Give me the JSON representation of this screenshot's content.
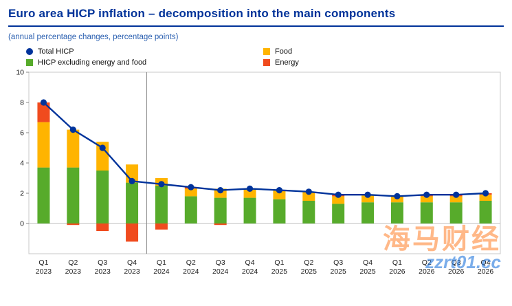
{
  "header": {
    "title": "Euro area HICP inflation – decomposition into the main components",
    "subtitle": "(annual percentage changes, percentage points)"
  },
  "legend": [
    {
      "label": "Total HICP",
      "type": "dot",
      "color": "#00339b"
    },
    {
      "label": "HICP excluding energy and food",
      "type": "square",
      "color": "#57ab2b"
    },
    {
      "label": "Food",
      "type": "square",
      "color": "#ffb400"
    },
    {
      "label": "Energy",
      "type": "square",
      "color": "#f04b1e"
    }
  ],
  "watermark": {
    "line1": "海马财经",
    "line2": "zzrt01.cc"
  },
  "chart_data": {
    "type": "bar",
    "subtype": "stacked-bars-with-total-line",
    "categories": [
      "Q1 2023",
      "Q2 2023",
      "Q3 2023",
      "Q4 2023",
      "Q1 2024",
      "Q2 2024",
      "Q3 2024",
      "Q4 2024",
      "Q1 2025",
      "Q2 2025",
      "Q3 2025",
      "Q4 2025",
      "Q1 2026",
      "Q2 2026",
      "Q3 2026",
      "Q4 2026"
    ],
    "series": [
      {
        "name": "HICP excluding energy and food",
        "color": "#57ab2b",
        "values": [
          3.7,
          3.7,
          3.5,
          2.7,
          2.5,
          1.8,
          1.7,
          1.7,
          1.6,
          1.5,
          1.3,
          1.4,
          1.4,
          1.4,
          1.4,
          1.5
        ]
      },
      {
        "name": "Food",
        "color": "#ffb400",
        "values": [
          3.0,
          2.5,
          1.9,
          1.2,
          0.5,
          0.5,
          0.6,
          0.6,
          0.6,
          0.6,
          0.5,
          0.5,
          0.4,
          0.4,
          0.4,
          0.4
        ]
      },
      {
        "name": "Energy",
        "color": "#f04b1e",
        "values": [
          1.3,
          -0.1,
          -0.5,
          -1.2,
          -0.4,
          0.1,
          -0.1,
          0.0,
          0.0,
          0.0,
          0.1,
          0.0,
          0.0,
          0.1,
          0.1,
          0.1
        ]
      }
    ],
    "line": {
      "name": "Total HICP",
      "color": "#00339b",
      "values": [
        8.0,
        6.2,
        5.0,
        2.8,
        2.6,
        2.4,
        2.2,
        2.3,
        2.2,
        2.1,
        1.9,
        1.9,
        1.8,
        1.9,
        1.9,
        2.0
      ]
    },
    "ylim": [
      -2,
      10
    ],
    "yticks": [
      0,
      2,
      4,
      6,
      8,
      10
    ],
    "divider_after_index": 3,
    "grid": false,
    "legend_position": "top"
  }
}
